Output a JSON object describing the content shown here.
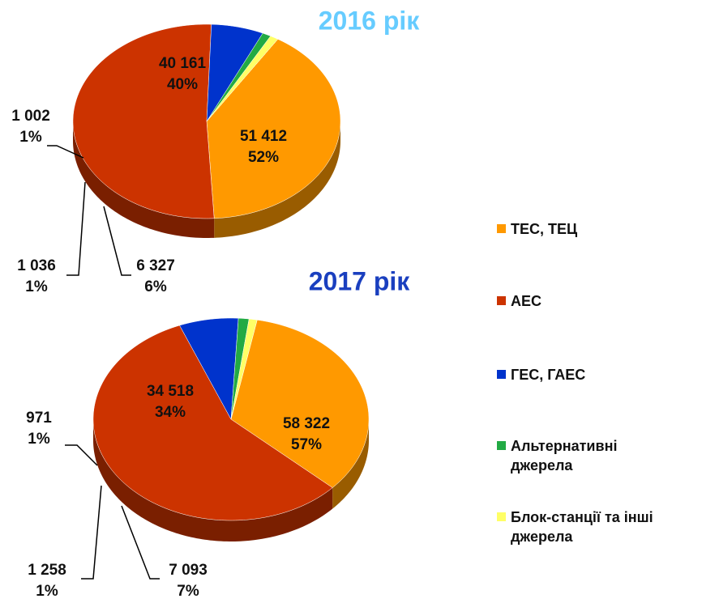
{
  "legend": {
    "categories": [
      "ТЕС, ТЕЦ",
      "АЕС",
      "ГЕС, ГАЕС",
      "Альтернативні джерела",
      "Блок-станції та інші джерела"
    ],
    "colors": [
      "#ff9900",
      "#cc3300",
      "#0033cc",
      "#22aa44",
      "#ffff66"
    ]
  },
  "chart_data": [
    {
      "type": "pie",
      "title": "2016 рік",
      "title_color": "#66ccff",
      "values": [
        40161,
        51412,
        6327,
        1036,
        1002
      ],
      "value_labels": [
        "40 161",
        "51 412",
        "6 327",
        "1 036",
        "1 002"
      ],
      "percents": [
        40,
        52,
        6,
        1,
        1
      ],
      "percent_labels": [
        "40%",
        "52%",
        "6%",
        "1%",
        "1%"
      ]
    },
    {
      "type": "pie",
      "title": "2017 рік",
      "title_color": "#1a3fbf",
      "values": [
        34518,
        58322,
        7093,
        1258,
        971
      ],
      "value_labels": [
        "34 518",
        "58 322",
        "7 093",
        "1 258",
        "971"
      ],
      "percents": [
        34,
        57,
        7,
        1,
        1
      ],
      "percent_labels": [
        "34%",
        "57%",
        "7%",
        "1%",
        "1%"
      ]
    }
  ]
}
